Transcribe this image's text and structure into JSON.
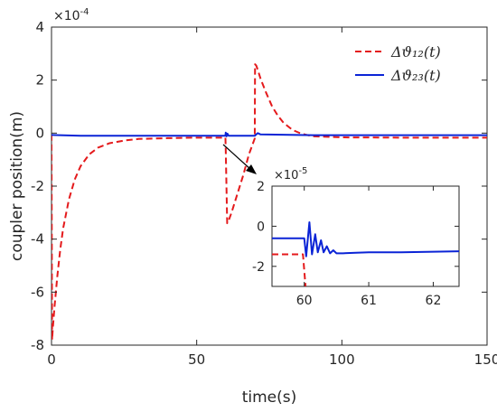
{
  "chart_data": [
    {
      "type": "line",
      "xlabel": "time(s)",
      "ylabel": "coupler position(m)",
      "y_exponent_label": "×10",
      "y_exponent_power": "-4",
      "xlim": [
        0,
        150
      ],
      "ylim": [
        -8,
        4
      ],
      "x_ticks": [
        0,
        50,
        100,
        150
      ],
      "y_ticks": [
        -8,
        -6,
        -4,
        -2,
        0,
        2,
        4
      ],
      "grid": false,
      "legend": "top-right",
      "legend_entries": [
        "Δϑ₁₂(t)",
        "Δϑ₂₃(t)"
      ],
      "series": [
        {
          "name": "Δϑ₁₂(t)",
          "color": "#e41a1c",
          "style": "dashed",
          "x": [
            0,
            0.2,
            0.5,
            1,
            2,
            3,
            4,
            6,
            8,
            10,
            13,
            16,
            20,
            25,
            30,
            40,
            50,
            59.9,
            60,
            60.5,
            61,
            62,
            64,
            66,
            68,
            70,
            70.1,
            70.5,
            71,
            72,
            74,
            76,
            78,
            80,
            83,
            86,
            90,
            100,
            120,
            150
          ],
          "y": [
            -0.05,
            -7.8,
            -7.3,
            -6.6,
            -5.4,
            -4.4,
            -3.6,
            -2.5,
            -1.75,
            -1.25,
            -0.8,
            -0.55,
            -0.38,
            -0.28,
            -0.22,
            -0.19,
            -0.17,
            -0.17,
            -0.6,
            -3.4,
            -3.3,
            -3.0,
            -2.3,
            -1.6,
            -0.8,
            -0.2,
            2.6,
            2.55,
            2.4,
            2.05,
            1.5,
            1.0,
            0.65,
            0.38,
            0.12,
            -0.02,
            -0.12,
            -0.16,
            -0.17,
            -0.17
          ]
        },
        {
          "name": "Δϑ₂₃(t)",
          "color": "#0b24d6",
          "style": "solid",
          "x": [
            0,
            10,
            30,
            59.9,
            60,
            60.3,
            60.6,
            61,
            70,
            71,
            72,
            90,
            120,
            150
          ],
          "y": [
            -0.07,
            -0.1,
            -0.1,
            -0.1,
            0.02,
            -0.12,
            -0.02,
            -0.1,
            -0.1,
            0.0,
            -0.05,
            -0.08,
            -0.08,
            -0.08
          ]
        }
      ]
    },
    {
      "type": "line",
      "placement": "inset",
      "xlim": [
        59.5,
        62.4
      ],
      "ylim": [
        -3,
        2
      ],
      "x_ticks": [
        60,
        61,
        62
      ],
      "y_ticks": [
        -2,
        0,
        2
      ],
      "y_exponent_label": "×10",
      "y_exponent_power": "-5",
      "series": [
        {
          "name": "Δϑ₁₂(t)",
          "color": "#e41a1c",
          "style": "dashed",
          "x": [
            59.5,
            59.98,
            60.0,
            60.02
          ],
          "y": [
            -1.4,
            -1.4,
            -2.2,
            -3.0
          ]
        },
        {
          "name": "Δϑ₂₃(t)",
          "color": "#0b24d6",
          "style": "solid",
          "x": [
            59.5,
            60.0,
            60.03,
            60.08,
            60.12,
            60.17,
            60.21,
            60.26,
            60.3,
            60.35,
            60.4,
            60.45,
            60.5,
            60.6,
            60.8,
            61.0,
            61.5,
            62.0,
            62.4
          ],
          "y": [
            -0.6,
            -0.6,
            -1.5,
            0.2,
            -1.4,
            -0.4,
            -1.3,
            -0.7,
            -1.3,
            -1.0,
            -1.35,
            -1.2,
            -1.35,
            -1.35,
            -1.32,
            -1.3,
            -1.3,
            -1.27,
            -1.25
          ]
        }
      ]
    }
  ]
}
